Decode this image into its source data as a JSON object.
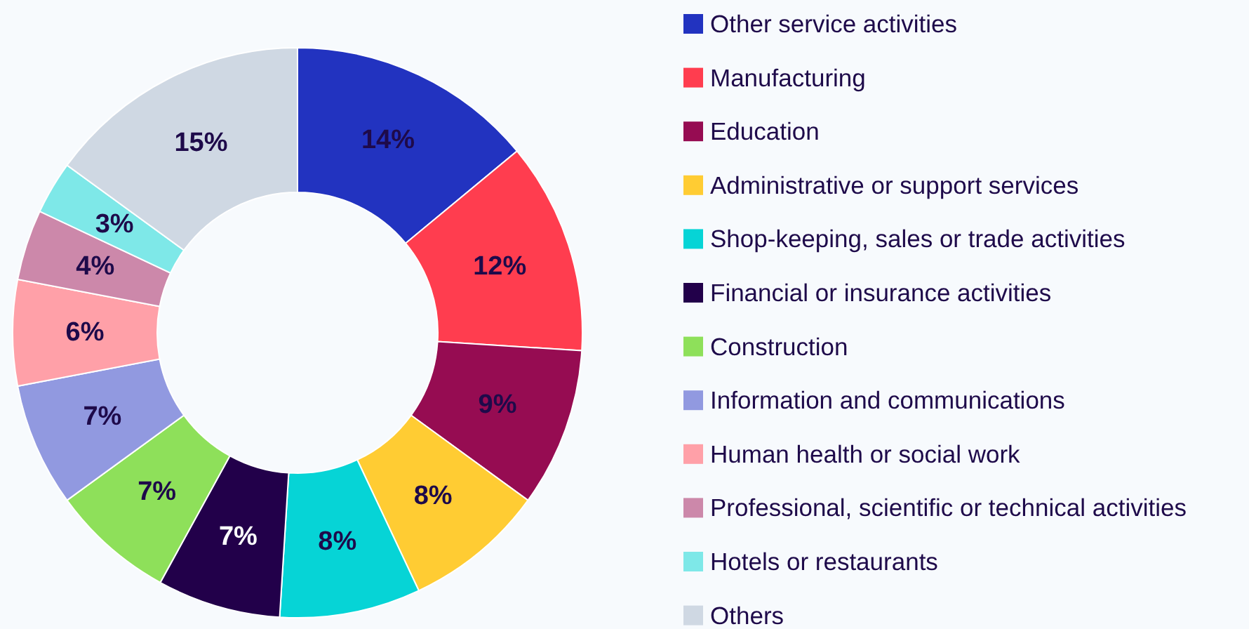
{
  "chart_data": {
    "type": "donut",
    "categories": [
      "Other service activities",
      "Manufacturing",
      "Education",
      "Administrative or support services",
      "Shop-keeping, sales or trade activities",
      "Financial or insurance activities",
      "Construction",
      "Information and communications",
      "Human health or social work",
      "Professional, scientific or technical activities",
      "Hotels or restaurants",
      "Others"
    ],
    "values": [
      14,
      12,
      9,
      8,
      8,
      7,
      7,
      7,
      6,
      4,
      3,
      15
    ],
    "value_labels": [
      "14%",
      "12%",
      "9%",
      "8%",
      "8%",
      "7%",
      "7%",
      "7%",
      "6%",
      "4%",
      "3%",
      "15%"
    ],
    "colors": [
      "#2233c0",
      "#ff3d4f",
      "#960c52",
      "#ffcc33",
      "#06d4d6",
      "#22004a",
      "#8ee05a",
      "#9199e0",
      "#ffa0a8",
      "#cc88aa",
      "#7ee8e8",
      "#cfd8e3"
    ],
    "legend": "right"
  }
}
